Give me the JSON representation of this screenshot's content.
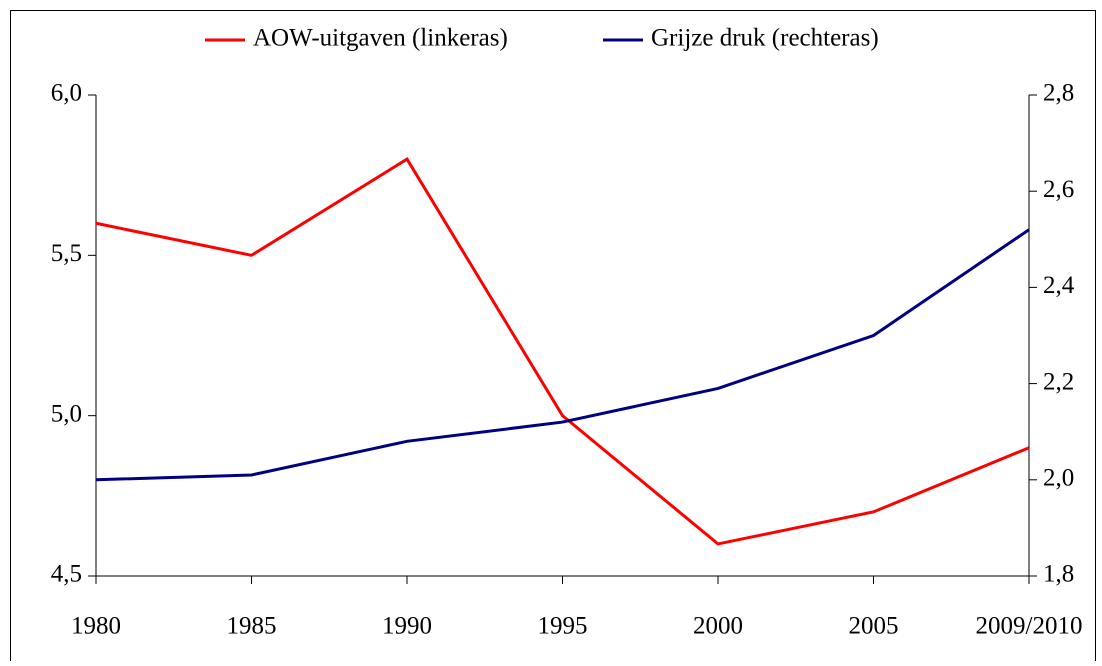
{
  "chart_data": {
    "type": "line",
    "categories": [
      "1980",
      "1985",
      "1990",
      "1995",
      "2000",
      "2005",
      "2009/2010"
    ],
    "series": [
      {
        "name": "AOW-uitgaven (linkeras)",
        "color": "#ff0000",
        "values": [
          5.6,
          5.5,
          5.8,
          5.0,
          4.6,
          4.7,
          4.9
        ]
      },
      {
        "name": "Grijze druk (rechteras)",
        "color": "#000080",
        "axis": "y2",
        "values": [
          2.0,
          2.01,
          2.08,
          2.12,
          2.19,
          2.3,
          2.52
        ]
      }
    ],
    "ylim": [
      4.5,
      6.0
    ],
    "yticks": [
      {
        "value": 4.5,
        "label": "4,5"
      },
      {
        "value": 5.0,
        "label": "5,0"
      },
      {
        "value": 5.5,
        "label": "5,5"
      },
      {
        "value": 6.0,
        "label": "6,0"
      }
    ],
    "y2lim": [
      1.8,
      2.8
    ],
    "y2ticks": [
      {
        "value": 1.8,
        "label": "1,8"
      },
      {
        "value": 2.0,
        "label": "2,0"
      },
      {
        "value": 2.2,
        "label": "2,2"
      },
      {
        "value": 2.4,
        "label": "2,4"
      },
      {
        "value": 2.6,
        "label": "2,6"
      },
      {
        "value": 2.8,
        "label": "2,8"
      }
    ],
    "legend": "top",
    "grid": false
  }
}
